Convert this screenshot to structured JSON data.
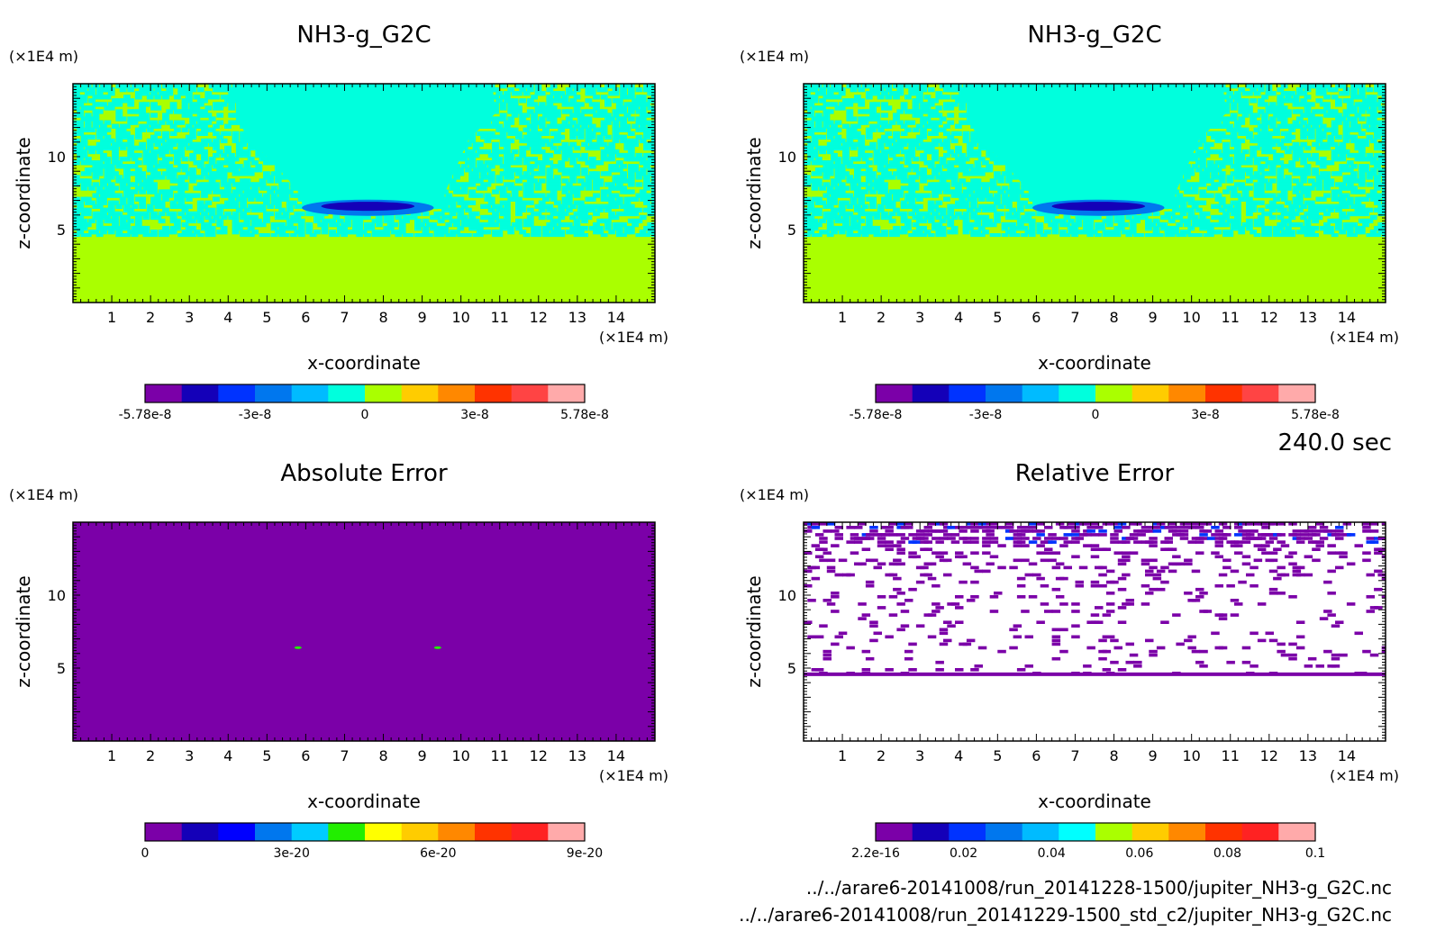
{
  "time_label": "240.0 sec",
  "footer": {
    "file1": "../../arare6-20141008/run_20141228-1500/jupiter_NH3-g_G2C.nc",
    "file2": "../../arare6-20141008/run_20141229-1500_std_c2/jupiter_NH3-g_G2C.nc"
  },
  "chart_data": [
    {
      "type": "heatmap",
      "title": "NH3-g_G2C",
      "xlabel": "x-coordinate",
      "ylabel": "z-coordinate",
      "x_unit": "(×1E4 m)",
      "y_unit": "(×1E4 m)",
      "xlim": [
        0,
        15
      ],
      "ylim": [
        0,
        15
      ],
      "x_ticks": [
        "1",
        "2",
        "3",
        "4",
        "5",
        "6",
        "7",
        "8",
        "9",
        "10",
        "11",
        "12",
        "13",
        "14"
      ],
      "y_ticks": [
        "5",
        "10"
      ],
      "fill": "noise",
      "colorbar": {
        "colors": [
          "#7b00a8",
          "#1400b8",
          "#0033ff",
          "#0077ee",
          "#00bbff",
          "#00ffdd",
          "#aaff00",
          "#ffcc00",
          "#ff8800",
          "#ff3300",
          "#ff4444",
          "#ffaaaa"
        ],
        "labels": [
          "-5.78e-8",
          "-3e-8",
          "0",
          "3e-8",
          "5.78e-8"
        ],
        "range": [
          -5.78e-08,
          5.78e-08
        ]
      }
    },
    {
      "type": "heatmap",
      "title": "NH3-g_G2C",
      "xlabel": "x-coordinate",
      "ylabel": "z-coordinate",
      "x_unit": "(×1E4 m)",
      "y_unit": "(×1E4 m)",
      "xlim": [
        0,
        15
      ],
      "ylim": [
        0,
        15
      ],
      "x_ticks": [
        "1",
        "2",
        "3",
        "4",
        "5",
        "6",
        "7",
        "8",
        "9",
        "10",
        "11",
        "12",
        "13",
        "14"
      ],
      "y_ticks": [
        "5",
        "10"
      ],
      "fill": "noise",
      "colorbar": {
        "colors": [
          "#7b00a8",
          "#1400b8",
          "#0033ff",
          "#0077ee",
          "#00bbff",
          "#00ffdd",
          "#aaff00",
          "#ffcc00",
          "#ff8800",
          "#ff3300",
          "#ff4444",
          "#ffaaaa"
        ],
        "labels": [
          "-5.78e-8",
          "-3e-8",
          "0",
          "3e-8",
          "5.78e-8"
        ],
        "range": [
          -5.78e-08,
          5.78e-08
        ]
      }
    },
    {
      "type": "heatmap",
      "title": "Absolute Error",
      "xlabel": "x-coordinate",
      "ylabel": "z-coordinate",
      "x_unit": "(×1E4 m)",
      "y_unit": "(×1E4 m)",
      "xlim": [
        0,
        15
      ],
      "ylim": [
        0,
        15
      ],
      "x_ticks": [
        "1",
        "2",
        "3",
        "4",
        "5",
        "6",
        "7",
        "8",
        "9",
        "10",
        "11",
        "12",
        "13",
        "14"
      ],
      "y_ticks": [
        "5",
        "10"
      ],
      "fill": "uniform",
      "colorbar": {
        "colors": [
          "#7b00a8",
          "#1400b8",
          "#0000ff",
          "#0077ee",
          "#00ccff",
          "#22ee00",
          "#ffff00",
          "#ffcc00",
          "#ff8800",
          "#ff3300",
          "#ff2222",
          "#ffaaaa"
        ],
        "labels": [
          "0",
          "3e-20",
          "6e-20",
          "9e-20"
        ],
        "range": [
          0,
          1.2e-19
        ]
      }
    },
    {
      "type": "heatmap",
      "title": "Relative Error",
      "xlabel": "x-coordinate",
      "ylabel": "z-coordinate",
      "x_unit": "(×1E4 m)",
      "y_unit": "(×1E4 m)",
      "xlim": [
        0,
        15
      ],
      "ylim": [
        0,
        15
      ],
      "x_ticks": [
        "1",
        "2",
        "3",
        "4",
        "5",
        "6",
        "7",
        "8",
        "9",
        "10",
        "11",
        "12",
        "13",
        "14"
      ],
      "y_ticks": [
        "5",
        "10"
      ],
      "fill": "sparse",
      "colorbar": {
        "colors": [
          "#7b00a8",
          "#1400b8",
          "#0033ff",
          "#0077ee",
          "#00bbff",
          "#00ffff",
          "#aaff00",
          "#ffcc00",
          "#ff8800",
          "#ff3300",
          "#ff2222",
          "#ffaaaa"
        ],
        "labels": [
          "2.2e-16",
          "0.02",
          "0.04",
          "0.06",
          "0.08",
          "0.1"
        ],
        "range": [
          2.2e-16,
          0.1
        ]
      }
    }
  ]
}
